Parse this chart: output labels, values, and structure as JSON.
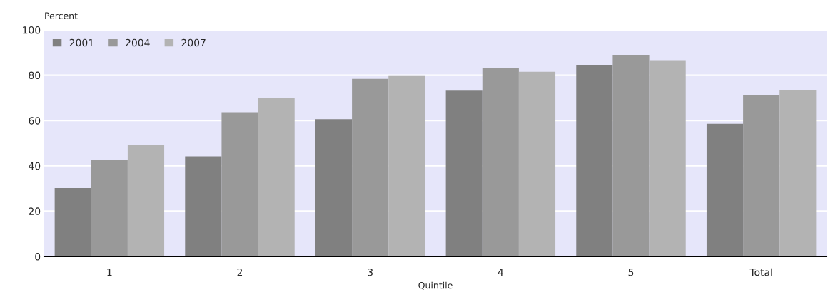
{
  "chart_data": {
    "type": "bar",
    "xlabel": "Quintile",
    "ylabel": "Percent",
    "categories": [
      "1",
      "2",
      "3",
      "4",
      "5",
      "Total"
    ],
    "series": [
      {
        "name": "2001",
        "color": "#808080",
        "values": [
          30.2,
          44.2,
          60.6,
          73.2,
          84.6,
          58.6
        ]
      },
      {
        "name": "2004",
        "color": "#999999",
        "values": [
          42.8,
          63.7,
          78.4,
          83.3,
          89.0,
          71.3
        ]
      },
      {
        "name": "2007",
        "color": "#b3b3b3",
        "values": [
          49.1,
          70.0,
          79.6,
          81.5,
          86.6,
          73.3
        ]
      }
    ],
    "ylim": [
      0,
      100
    ],
    "yticks": [
      0,
      20,
      40,
      60,
      80,
      100
    ],
    "grid": "y",
    "legend": "top left"
  }
}
